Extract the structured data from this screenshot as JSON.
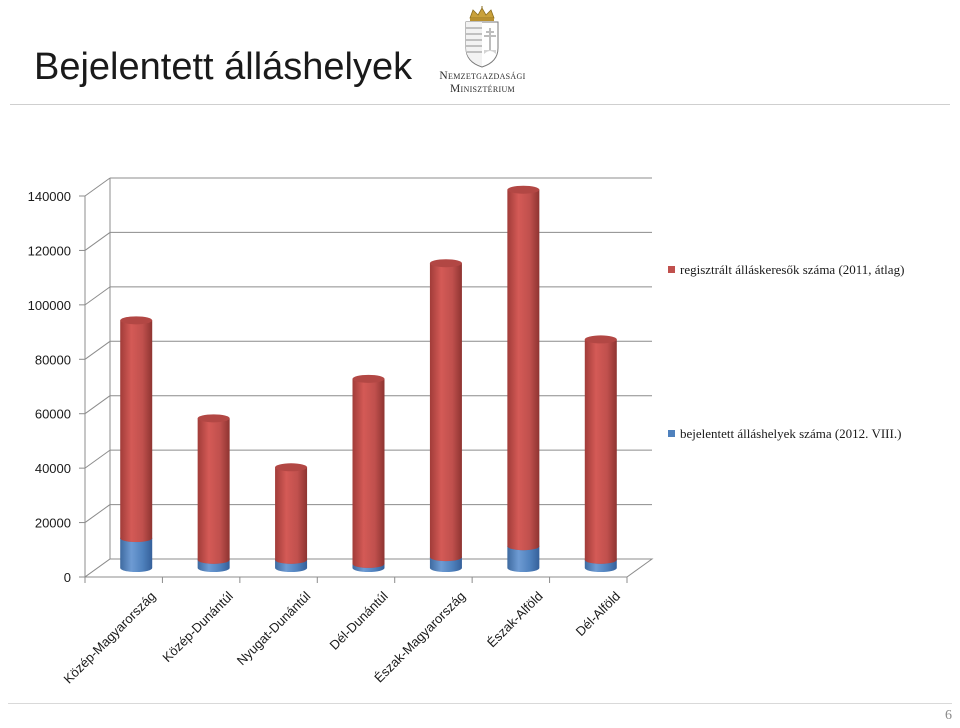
{
  "slide": {
    "title": "Bejelentett álláshelyek",
    "logo_line1": "Nemzetgazdasági",
    "logo_line2": "Minisztérium",
    "page_number": "6"
  },
  "colors": {
    "series_red": "#c0504d",
    "series_blue": "#4f81bd"
  },
  "chart_data": {
    "type": "bar",
    "stacked": true,
    "three_d": true,
    "categories": [
      "Közép-Magyarország",
      "Közép-Dunántúl",
      "Nyugat-Dunántúl",
      "Dél-Dunántúl",
      "Észak-Magyarország",
      "Észak-Alföld",
      "Dél-Alföld"
    ],
    "series": [
      {
        "name": "bejelentett álláshelyek száma (2012. VIII.)",
        "color": "#4f81bd",
        "values": [
          11000,
          3000,
          3000,
          1500,
          4000,
          8000,
          3000
        ]
      },
      {
        "name": "regisztrált álláskeresők száma (2011, átlag)",
        "color": "#c0504d",
        "values": [
          80000,
          52000,
          34000,
          68000,
          108000,
          131000,
          81000
        ]
      }
    ],
    "yticks": [
      "0",
      "20000",
      "40000",
      "60000",
      "80000",
      "100000",
      "120000",
      "140000"
    ],
    "ylim": [
      0,
      140000
    ],
    "grid": true,
    "legend_position": "right"
  }
}
